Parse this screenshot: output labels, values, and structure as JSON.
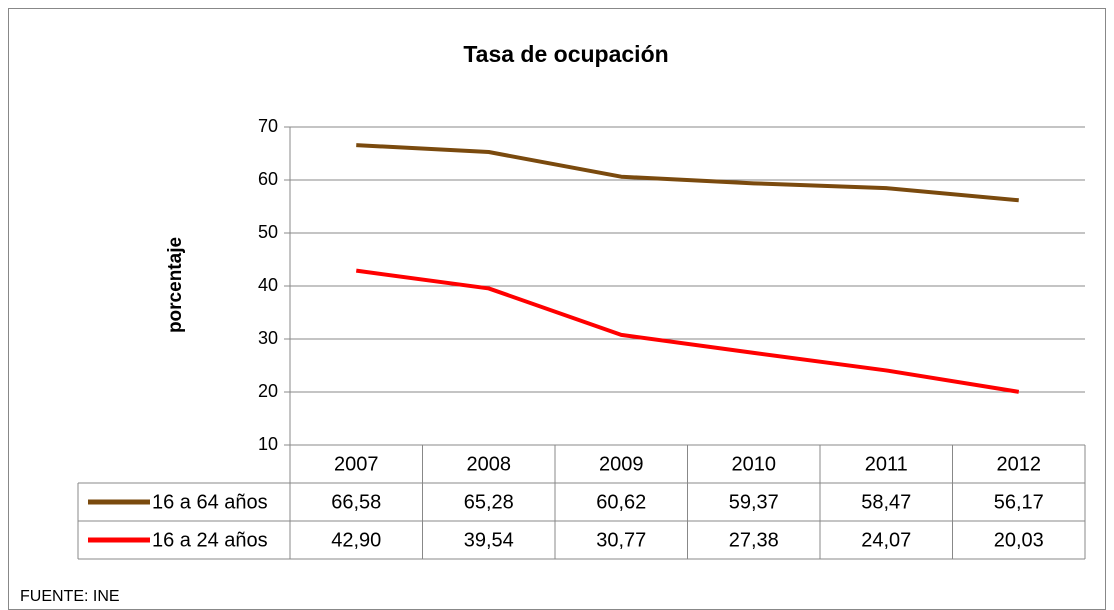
{
  "chart_data": {
    "type": "line",
    "title": "Tasa de ocupación",
    "y_label": "porcentaje",
    "source": "FUENTE: INE",
    "categories": [
      "2007",
      "2008",
      "2009",
      "2010",
      "2011",
      "2012"
    ],
    "series": [
      {
        "name": "16 a 64 años",
        "color": "#7a4a0e",
        "values": [
          66.58,
          65.28,
          60.62,
          59.37,
          58.47,
          56.17
        ],
        "value_labels": [
          "66,58",
          "65,28",
          "60,62",
          "59,37",
          "58,47",
          "56,17"
        ]
      },
      {
        "name": "16 a 24 años",
        "color": "#ff0000",
        "values": [
          42.9,
          39.54,
          30.77,
          27.38,
          24.07,
          20.03
        ],
        "value_labels": [
          "42,90",
          "39,54",
          "30,77",
          "27,38",
          "24,07",
          "20,03"
        ]
      }
    ],
    "ylim": [
      10,
      70
    ],
    "yticks": [
      10,
      20,
      30,
      40,
      50,
      60,
      70
    ],
    "grid": true
  }
}
